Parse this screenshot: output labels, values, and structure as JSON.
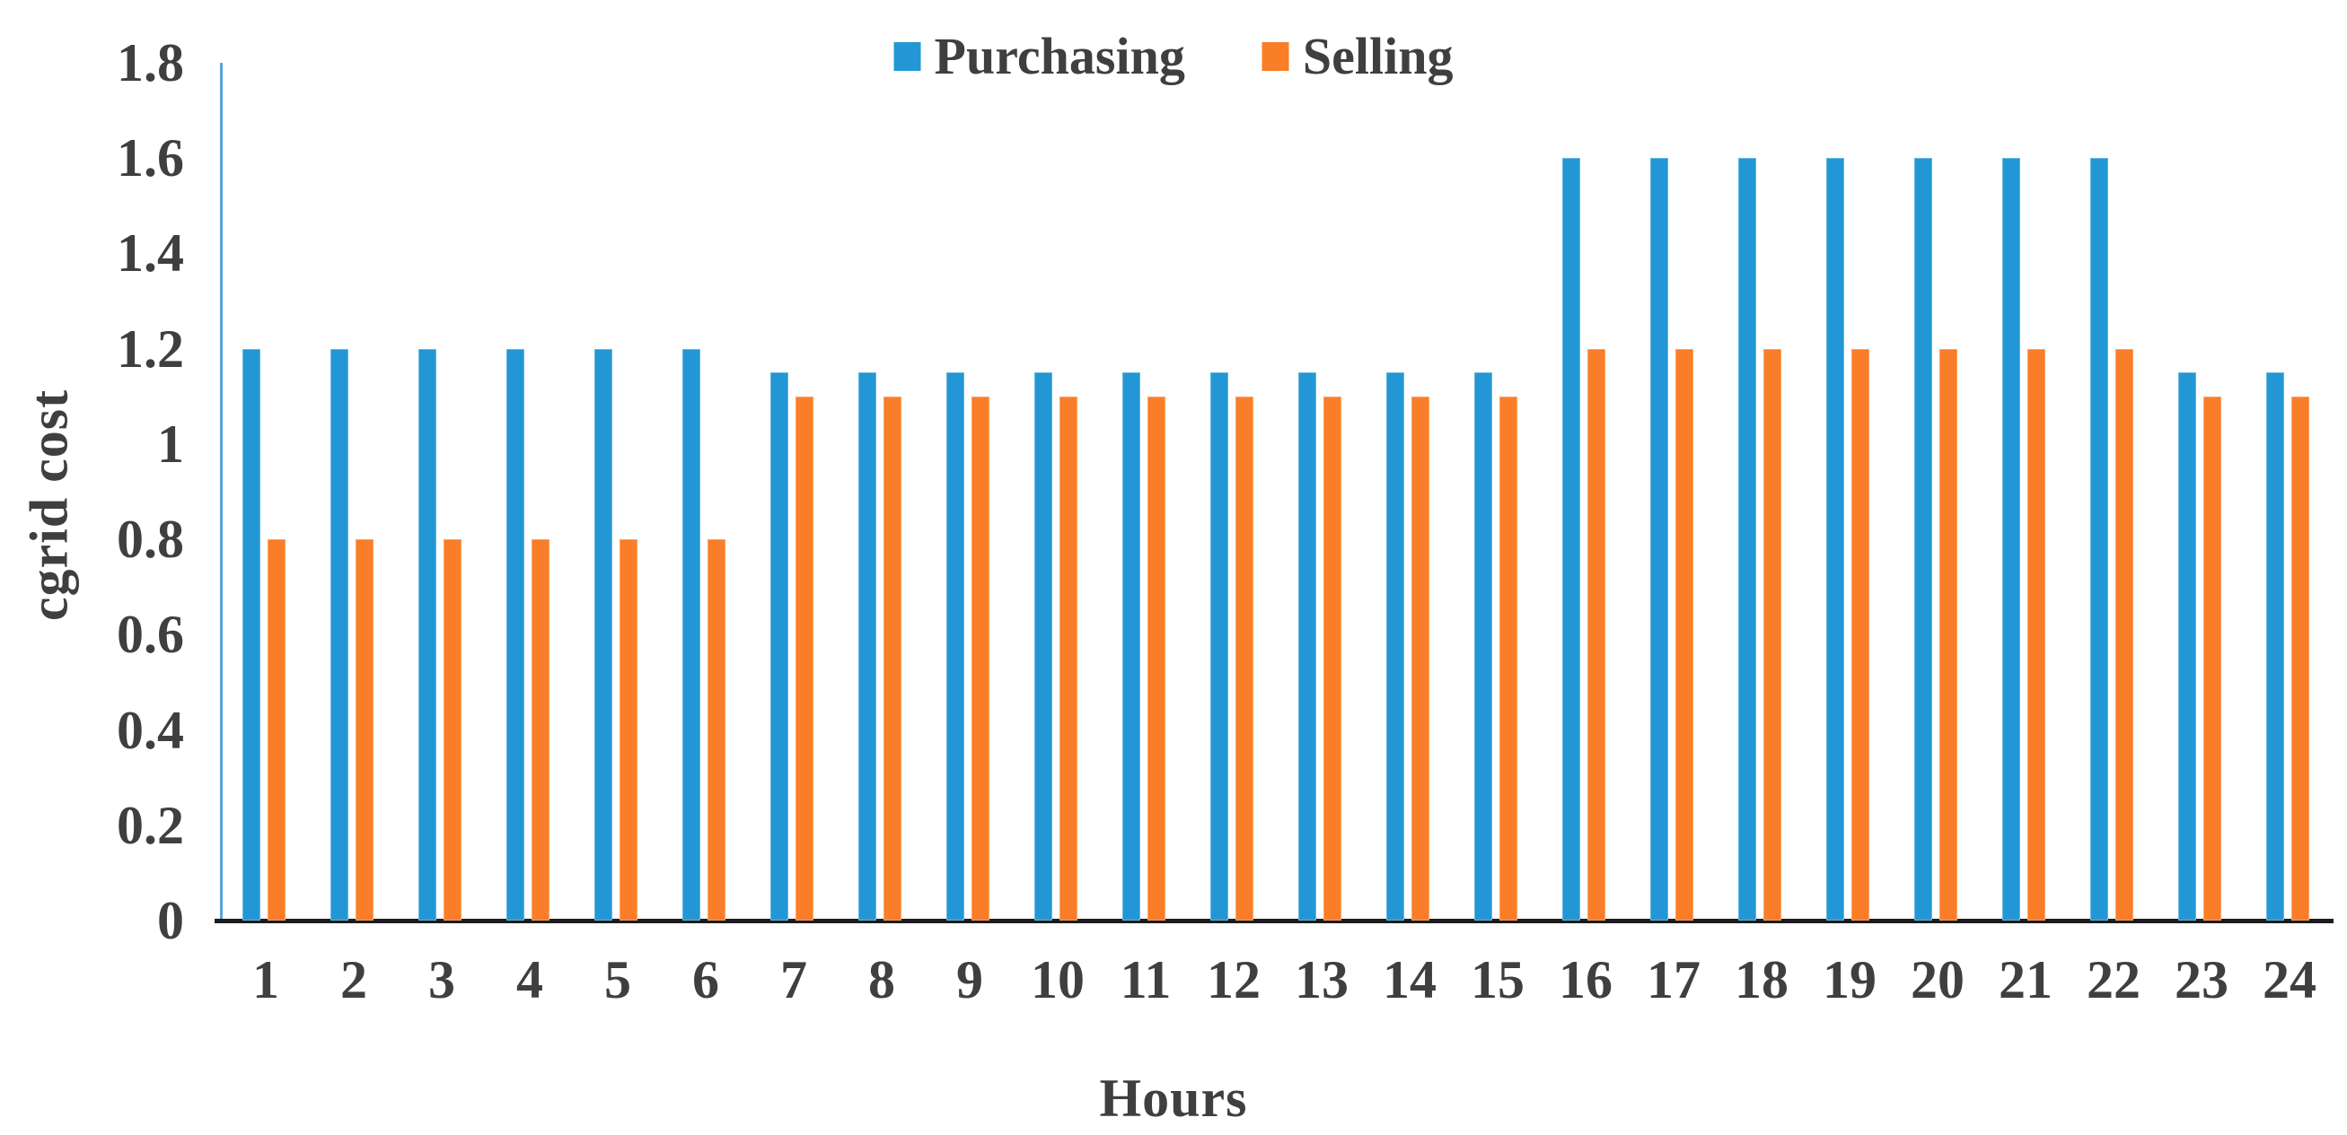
{
  "chart_data": {
    "type": "bar",
    "categories": [
      1,
      2,
      3,
      4,
      5,
      6,
      7,
      8,
      9,
      10,
      11,
      12,
      13,
      14,
      15,
      16,
      17,
      18,
      19,
      20,
      21,
      22,
      23,
      24
    ],
    "series": [
      {
        "name": "Purchasing",
        "color": "#2397d5",
        "values": [
          1.2,
          1.2,
          1.2,
          1.2,
          1.2,
          1.2,
          1.15,
          1.15,
          1.15,
          1.15,
          1.15,
          1.15,
          1.15,
          1.15,
          1.15,
          1.6,
          1.6,
          1.6,
          1.6,
          1.6,
          1.6,
          1.6,
          1.15,
          1.15
        ]
      },
      {
        "name": "Selling",
        "color": "#fa7d27",
        "values": [
          0.8,
          0.8,
          0.8,
          0.8,
          0.8,
          0.8,
          1.1,
          1.1,
          1.1,
          1.1,
          1.1,
          1.1,
          1.1,
          1.1,
          1.1,
          1.2,
          1.2,
          1.2,
          1.2,
          1.2,
          1.2,
          1.2,
          1.1,
          1.1
        ]
      }
    ],
    "title": "",
    "xlabel": "Hours",
    "ylabel": "cgrid cost",
    "ylim": [
      0,
      1.8
    ],
    "ytick_labels": [
      "1.8",
      "1.6",
      "1.4",
      "1.2",
      "1",
      "0.8",
      "0.6",
      "0.4",
      "0.2",
      "0"
    ],
    "grid": false,
    "legend_position": "top-center",
    "colors": {
      "purchasing_bar": "#2397d5",
      "selling_bar": "#fa7d27",
      "y_axis_line": "#57a5db",
      "x_axis_line": "#1c1c1c",
      "text": "#3f3f3f",
      "background": "#ffffff"
    }
  }
}
